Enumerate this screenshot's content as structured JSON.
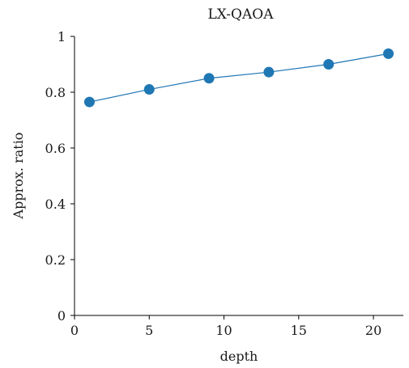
{
  "chart_data": {
    "type": "line",
    "title": "LX-QAOA",
    "xlabel": "depth",
    "ylabel": "Approx. ratio",
    "xlim": [
      0,
      22
    ],
    "ylim": [
      0,
      1
    ],
    "xticks": [
      0,
      5,
      10,
      15,
      20
    ],
    "yticks": [
      0,
      0.2,
      0.4,
      0.6,
      0.8,
      1
    ],
    "ytick_labels": [
      "0",
      "0.2",
      "0.4",
      "0.6",
      "0.8",
      "1"
    ],
    "xtick_labels": [
      "0",
      "5",
      "10",
      "15",
      "20"
    ],
    "grid": false,
    "series": [
      {
        "x": [
          1,
          5,
          9,
          13,
          17,
          21
        ],
        "y": [
          0.765,
          0.81,
          0.85,
          0.872,
          0.9,
          0.938
        ],
        "color": "#1f77b4",
        "marker": "circle"
      }
    ]
  }
}
